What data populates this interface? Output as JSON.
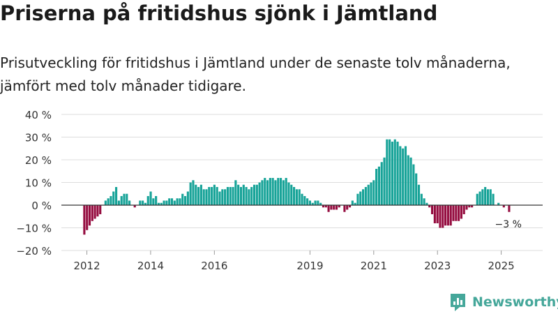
{
  "title": "Priserna på fritidshus sjönk i Jämtland",
  "subtitle": "Prisutveckling för fritidshus i Jämtland under de senaste tolv månaderna, jämfört med tolv månader tidigare.",
  "brand": "Newsworthy",
  "colors": {
    "positive": "#17a398",
    "negative": "#950d40",
    "grid": "#dddddd",
    "zero_line": "#333333",
    "axis_text": "#333333",
    "brand": "#45a79a"
  },
  "chart_data": {
    "type": "bar",
    "unit": "%",
    "ylim": [
      -20,
      40
    ],
    "yticks": [
      -20,
      -10,
      0,
      10,
      20,
      30,
      40
    ],
    "ytick_labels": [
      "−20 %",
      "−10 %",
      "0 %",
      "10 %",
      "20 %",
      "30 %",
      "40 %"
    ],
    "x_start": 2011.92,
    "x_step": 0.0833,
    "xlim": [
      2011.2,
      2026.3
    ],
    "xticks": [
      2012,
      2014,
      2016,
      2019,
      2021,
      2023,
      2025
    ],
    "xtick_labels": [
      "2012",
      "2014",
      "2016",
      "2019",
      "2021",
      "2023",
      "2025"
    ],
    "annotation": {
      "label": "−3 %",
      "value": -3
    },
    "values": [
      -13,
      -11,
      -9,
      -7,
      -6,
      -5,
      -4,
      0,
      2,
      3,
      4,
      6,
      8,
      2,
      4,
      5,
      5,
      2,
      0,
      -1,
      0,
      2,
      2,
      1,
      4,
      6,
      3,
      4,
      1,
      1,
      2,
      2,
      3,
      3,
      2,
      3,
      3,
      5,
      4,
      6,
      10,
      11,
      9,
      8,
      9,
      7,
      7,
      8,
      8,
      9,
      8,
      6,
      7,
      7,
      8,
      8,
      8,
      11,
      9,
      8,
      9,
      8,
      7,
      8,
      9,
      9,
      10,
      11,
      12,
      11,
      12,
      12,
      11,
      12,
      12,
      11,
      12,
      10,
      9,
      8,
      7,
      7,
      5,
      4,
      3,
      2,
      1,
      2,
      2,
      1,
      -1,
      -1,
      -3,
      -2,
      -2,
      -2,
      -1,
      0,
      -3,
      -2,
      -1,
      2,
      1,
      5,
      6,
      7,
      8,
      9,
      10,
      11,
      16,
      17,
      19,
      21,
      29,
      29,
      28,
      29,
      28,
      26,
      25,
      26,
      22,
      21,
      18,
      14,
      9,
      5,
      3,
      1,
      -1,
      -4,
      -8,
      -8,
      -10,
      -10,
      -9,
      -9,
      -9,
      -7,
      -7,
      -7,
      -6,
      -4,
      -2,
      -1,
      -1,
      0,
      5,
      6,
      7,
      8,
      7,
      7,
      5,
      0,
      1,
      0,
      -1,
      0,
      -3
    ]
  }
}
